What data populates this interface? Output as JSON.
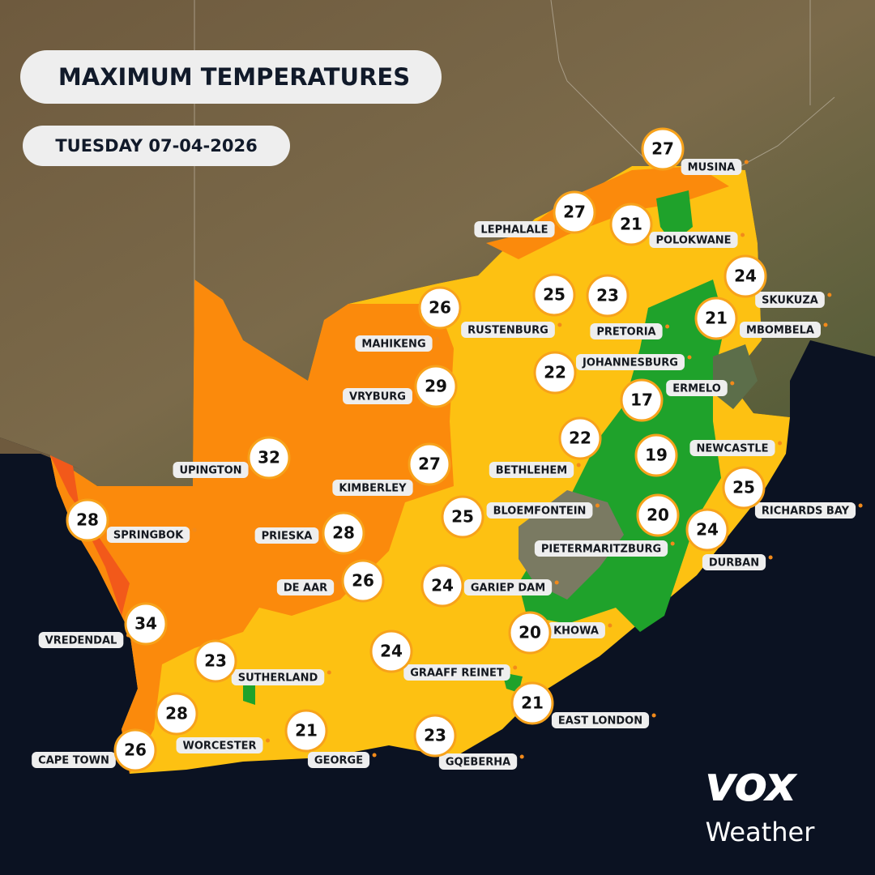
{
  "header": {
    "title": "MAXIMUM TEMPERATURES",
    "date": "TUESDAY 07-04-2026"
  },
  "cities": [
    {
      "name": "MUSINA",
      "temperature": 27
    },
    {
      "name": "LEPHALALE",
      "temperature": 27
    },
    {
      "name": "POLOKWANE",
      "temperature": 21
    },
    {
      "name": "SKUKUZA",
      "temperature": 24
    },
    {
      "name": "RUSTENBURG",
      "temperature": 25
    },
    {
      "name": "PRETORIA",
      "temperature": 23
    },
    {
      "name": "MBOMBELA",
      "temperature": 21
    },
    {
      "name": "MAHIKENG",
      "temperature": 26
    },
    {
      "name": "JOHANNESBURG",
      "temperature": 22
    },
    {
      "name": "ERMELO",
      "temperature": 17
    },
    {
      "name": "VRYBURG",
      "temperature": 29
    },
    {
      "name": "UPINGTON",
      "temperature": 32
    },
    {
      "name": "KIMBERLEY",
      "temperature": 27
    },
    {
      "name": "BETHLEHEM",
      "temperature": 22
    },
    {
      "name": "NEWCASTLE",
      "temperature": 19
    },
    {
      "name": "RICHARDS BAY",
      "temperature": 25
    },
    {
      "name": "BLOEMFONTEIN",
      "temperature": 25
    },
    {
      "name": "PIETERMARITZBURG",
      "temperature": 20
    },
    {
      "name": "DURBAN",
      "temperature": 24
    },
    {
      "name": "SPRINGBOK",
      "temperature": 28
    },
    {
      "name": "PRIESKA",
      "temperature": 28
    },
    {
      "name": "DE AAR",
      "temperature": 26
    },
    {
      "name": "GARIEP DAM",
      "temperature": 24
    },
    {
      "name": "KHOWA",
      "temperature": 20
    },
    {
      "name": "VREDENDAL",
      "temperature": 34
    },
    {
      "name": "GRAAFF REINET",
      "temperature": 24
    },
    {
      "name": "SUTHERLAND",
      "temperature": 23
    },
    {
      "name": "EAST LONDON",
      "temperature": 21
    },
    {
      "name": "WORCESTER",
      "temperature": 28
    },
    {
      "name": "CAPE TOWN",
      "temperature": 26
    },
    {
      "name": "GEORGE",
      "temperature": 21
    },
    {
      "name": "GQEBERHA",
      "temperature": 23
    }
  ],
  "logo": {
    "brand": "vox",
    "tagline": "Weather"
  }
}
